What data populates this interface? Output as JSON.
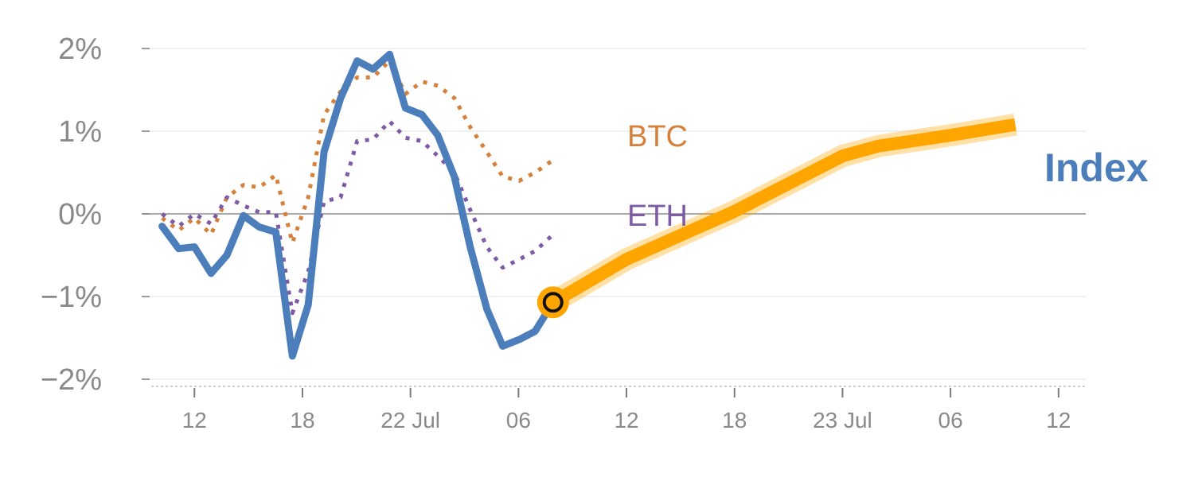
{
  "chart_data": {
    "type": "line",
    "grid": true,
    "y_format": "percent",
    "ylim": [
      -2.1,
      2.05
    ],
    "y_ticks": [
      {
        "value": 2,
        "label": "2%"
      },
      {
        "value": 1,
        "label": "1%"
      },
      {
        "value": 0,
        "label": "0%"
      },
      {
        "value": -1,
        "label": "−1%"
      },
      {
        "value": -2,
        "label": "−2%"
      }
    ],
    "x_domain": [
      0,
      1300
    ],
    "x_ticks": [
      {
        "x": 60,
        "label": "12"
      },
      {
        "x": 210,
        "label": "18"
      },
      {
        "x": 360,
        "label": "22 Jul"
      },
      {
        "x": 510,
        "label": "06"
      },
      {
        "x": 660,
        "label": "12"
      },
      {
        "x": 810,
        "label": "18"
      },
      {
        "x": 960,
        "label": "23 Jul"
      },
      {
        "x": 1110,
        "label": "06"
      },
      {
        "x": 1260,
        "label": "12"
      }
    ],
    "series": [
      {
        "name": "Index",
        "color": "#4c7ebb",
        "style": "solid",
        "points": [
          [
            15,
            -0.15
          ],
          [
            38,
            -0.42
          ],
          [
            60,
            -0.4
          ],
          [
            83,
            -0.72
          ],
          [
            105,
            -0.5
          ],
          [
            128,
            -0.02
          ],
          [
            150,
            -0.16
          ],
          [
            173,
            -0.22
          ],
          [
            196,
            -1.72
          ],
          [
            218,
            -1.1
          ],
          [
            240,
            0.75
          ],
          [
            263,
            1.4
          ],
          [
            286,
            1.85
          ],
          [
            308,
            1.75
          ],
          [
            331,
            1.93
          ],
          [
            353,
            1.28
          ],
          [
            376,
            1.2
          ],
          [
            398,
            0.95
          ],
          [
            421,
            0.45
          ],
          [
            443,
            -0.4
          ],
          [
            466,
            -1.15
          ],
          [
            488,
            -1.6
          ],
          [
            511,
            -1.52
          ],
          [
            533,
            -1.42
          ],
          [
            558,
            -1.07
          ]
        ]
      },
      {
        "name": "BTC",
        "color": "#d6813b",
        "style": "dotted",
        "points": [
          [
            15,
            -0.05
          ],
          [
            38,
            -0.2
          ],
          [
            60,
            -0.05
          ],
          [
            83,
            -0.25
          ],
          [
            105,
            0.2
          ],
          [
            128,
            0.35
          ],
          [
            150,
            0.32
          ],
          [
            173,
            0.47
          ],
          [
            196,
            -0.35
          ],
          [
            218,
            0.2
          ],
          [
            240,
            1.2
          ],
          [
            263,
            1.48
          ],
          [
            286,
            1.65
          ],
          [
            308,
            1.65
          ],
          [
            331,
            1.85
          ],
          [
            353,
            1.45
          ],
          [
            376,
            1.6
          ],
          [
            398,
            1.55
          ],
          [
            421,
            1.4
          ],
          [
            443,
            1.05
          ],
          [
            466,
            0.75
          ],
          [
            488,
            0.45
          ],
          [
            511,
            0.4
          ],
          [
            533,
            0.5
          ],
          [
            558,
            0.65
          ]
        ]
      },
      {
        "name": "ETH",
        "color": "#7d5ba6",
        "style": "dotted",
        "points": [
          [
            15,
            0.0
          ],
          [
            38,
            -0.15
          ],
          [
            60,
            0.0
          ],
          [
            83,
            -0.12
          ],
          [
            105,
            0.2
          ],
          [
            128,
            0.1
          ],
          [
            150,
            0.02
          ],
          [
            173,
            0.02
          ],
          [
            196,
            -1.2
          ],
          [
            218,
            -0.7
          ],
          [
            240,
            0.15
          ],
          [
            263,
            0.2
          ],
          [
            286,
            0.88
          ],
          [
            308,
            0.9
          ],
          [
            331,
            1.12
          ],
          [
            353,
            0.92
          ],
          [
            376,
            0.88
          ],
          [
            398,
            0.7
          ],
          [
            421,
            0.5
          ],
          [
            443,
            0.05
          ],
          [
            466,
            -0.4
          ],
          [
            488,
            -0.65
          ],
          [
            511,
            -0.55
          ],
          [
            533,
            -0.45
          ],
          [
            558,
            -0.25
          ]
        ]
      },
      {
        "name": "",
        "color": "#ffa500",
        "style": "highlight",
        "points": [
          [
            558,
            -1.07
          ],
          [
            660,
            -0.55
          ],
          [
            810,
            0.03
          ],
          [
            960,
            0.7
          ],
          [
            1010,
            0.82
          ],
          [
            1110,
            0.95
          ],
          [
            1200,
            1.08
          ]
        ]
      }
    ],
    "highlight_marker": {
      "x": 558,
      "y": -1.07
    },
    "series_labels": {
      "btc": "BTC",
      "eth": "ETH",
      "index": "Index"
    }
  }
}
